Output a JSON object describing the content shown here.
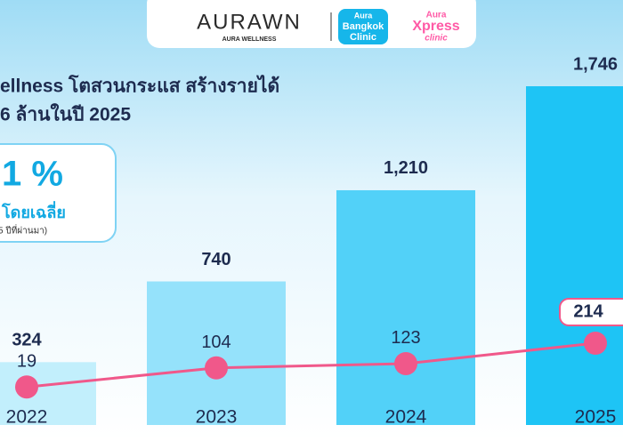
{
  "header": {
    "brand": "AURAWN",
    "brand_sub": "AURA WELLNESS",
    "clinic_1": [
      "Aura",
      "Bangkok",
      "Clinic"
    ],
    "clinic_2": [
      "Aura",
      "Xpress",
      "clinic"
    ]
  },
  "chart_data": {
    "type": "bar",
    "title": [
      "ellness โตสวนกระแส สร้างรายได้",
      "6 ล้านในปี 2025"
    ],
    "callout": {
      "value": "1 %",
      "text": "โดยเฉลี่ย",
      "note": "5 ปีที่ผ่านมา)"
    },
    "categories": [
      "2022",
      "2023",
      "2024",
      "2025"
    ],
    "series": [
      {
        "type": "bar",
        "colors": [
          "#c2effc",
          "#95e2fb",
          "#52d1f8",
          "#1ec4f5"
        ],
        "values": [
          324,
          740,
          1210,
          1746
        ],
        "value_labels": [
          "324",
          "740",
          "1,210",
          "1,746"
        ]
      },
      {
        "type": "line",
        "color": "#f0588a",
        "values": [
          19,
          104,
          123,
          214
        ]
      }
    ]
  }
}
